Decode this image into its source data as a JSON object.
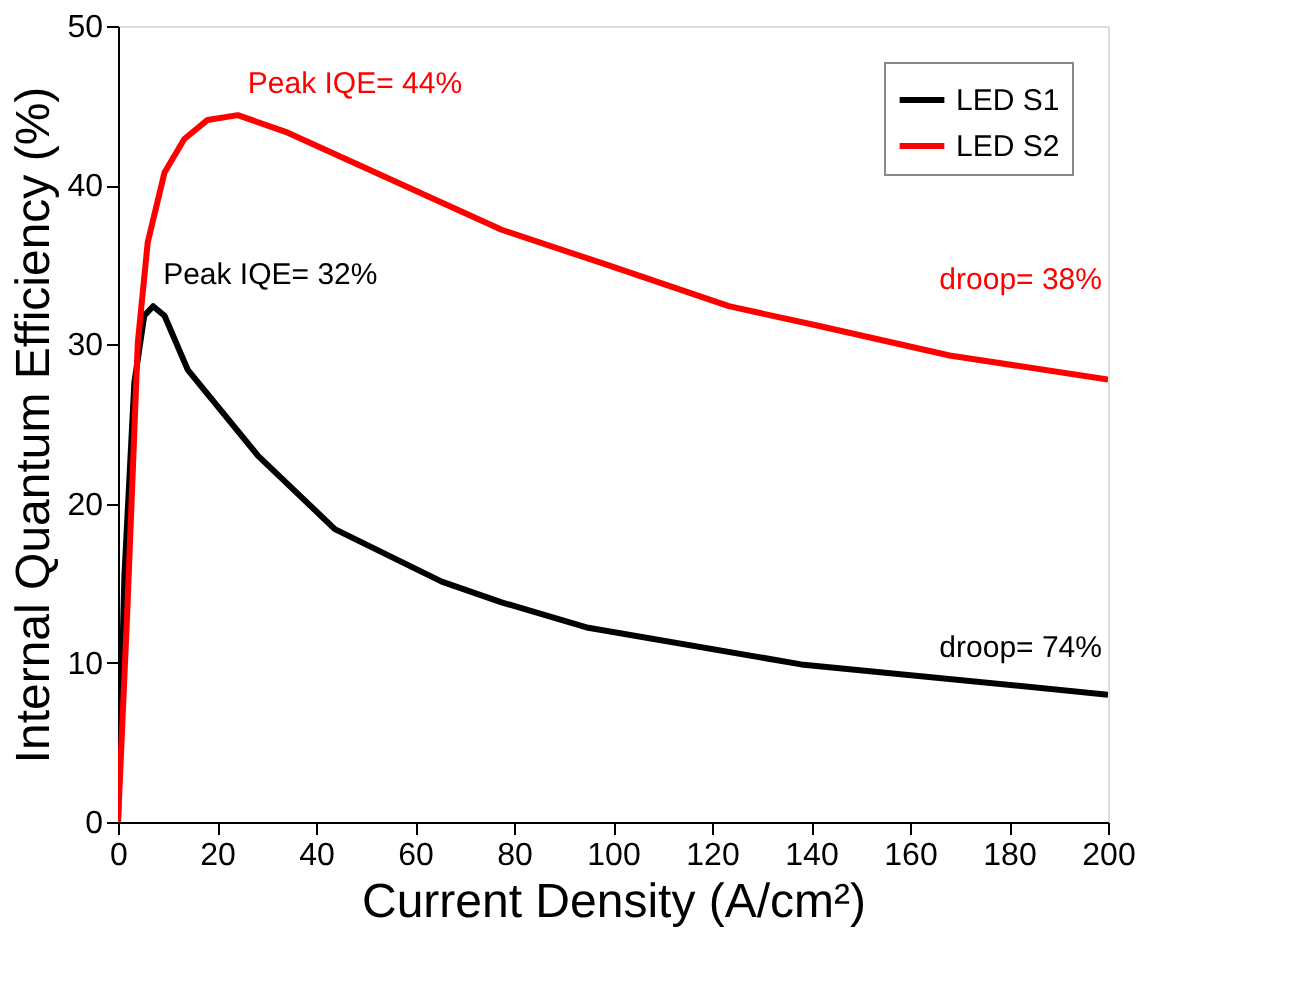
{
  "chart_data": {
    "type": "line",
    "xlabel": "Current Density (A/cm²)",
    "ylabel": "Internal Quantum Efficiency (%)",
    "xlim": [
      0,
      200
    ],
    "ylim": [
      0,
      50
    ],
    "xticks": [
      0,
      20,
      40,
      60,
      80,
      100,
      120,
      140,
      160,
      180,
      200
    ],
    "yticks": [
      0,
      10,
      20,
      30,
      40,
      50
    ],
    "grid": false,
    "legend": "top right",
    "marker": "none",
    "line_style": "solid",
    "series": [
      {
        "name": "LED S1",
        "color": "#000000",
        "x": [
          0,
          1.3,
          3.3,
          5.3,
          7.1,
          9.4,
          14.1,
          28.3,
          43.8,
          65.4,
          77.5,
          95,
          138,
          200
        ],
        "values": [
          0,
          15.5,
          27.6,
          31.8,
          32.4,
          31.8,
          28.4,
          23.0,
          18.4,
          15.1,
          13.8,
          12.2,
          9.9,
          8.0
        ]
      },
      {
        "name": "LED S2",
        "color": "#ff0000",
        "x": [
          0,
          1.9,
          4.0,
          6.0,
          9.4,
          13.4,
          18.1,
          24.2,
          34.3,
          77.5,
          97.8,
          123.4,
          141,
          168,
          200
        ],
        "values": [
          0,
          13.4,
          30.1,
          36.4,
          40.8,
          42.9,
          44.1,
          44.4,
          43.3,
          37.2,
          35.1,
          32.4,
          31.2,
          29.3,
          27.8
        ]
      }
    ],
    "annotations": [
      {
        "text": "Peak IQE= 44%",
        "x": 24.2,
        "y": 44.4
      },
      {
        "text": "Peak IQE= 32%",
        "x": 7.1,
        "y": 32.4
      },
      {
        "text": "droop= 38%",
        "x": 200,
        "y": 27.8
      },
      {
        "text": "droop= 74%",
        "x": 200,
        "y": 8.0
      }
    ]
  }
}
